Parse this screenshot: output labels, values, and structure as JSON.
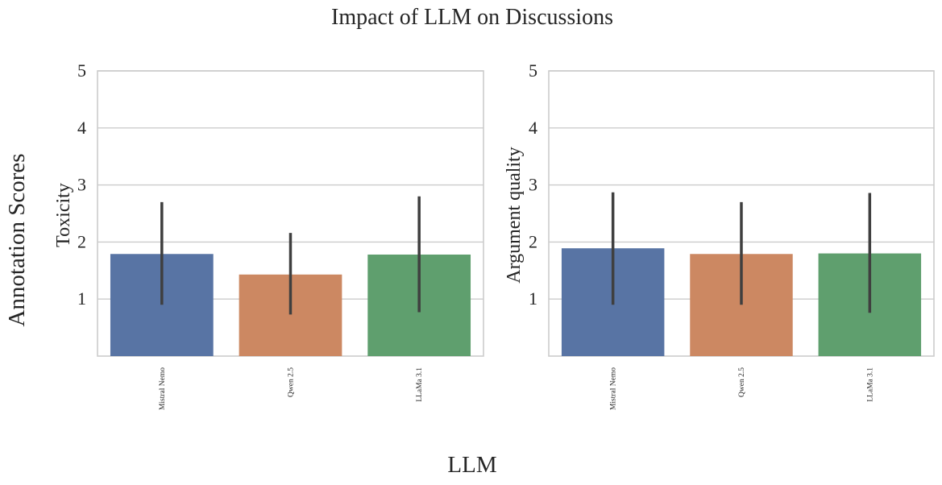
{
  "figure": {
    "title": "Impact of LLM on Discussions",
    "supxlabel": "LLM",
    "supylabel": "Annotation Scores"
  },
  "chart_data": [
    {
      "type": "bar",
      "ylabel": "Toxicity",
      "xlabel": "",
      "categories": [
        "Mistral Nemo",
        "Qwen 2.5",
        "LLaMa 3.1"
      ],
      "values": [
        1.79,
        1.43,
        1.78
      ],
      "error_low": [
        0.9,
        0.73,
        0.77
      ],
      "error_high": [
        2.7,
        2.16,
        2.8
      ],
      "colors": [
        "#5874a4",
        "#cc8862",
        "#5f9f6e"
      ],
      "ylim": [
        0,
        5
      ],
      "yticks": [
        "1",
        "2",
        "3",
        "4",
        "5"
      ],
      "grid": true
    },
    {
      "type": "bar",
      "ylabel": "Argument quality",
      "xlabel": "",
      "categories": [
        "Mistral Nemo",
        "Qwen 2.5",
        "LLaMa 3.1"
      ],
      "values": [
        1.89,
        1.79,
        1.8
      ],
      "error_low": [
        0.9,
        0.9,
        0.76
      ],
      "error_high": [
        2.87,
        2.7,
        2.86
      ],
      "colors": [
        "#5874a4",
        "#cc8862",
        "#5f9f6e"
      ],
      "ylim": [
        0,
        5
      ],
      "yticks": [
        "1",
        "2",
        "3",
        "4",
        "5"
      ],
      "grid": true
    }
  ]
}
